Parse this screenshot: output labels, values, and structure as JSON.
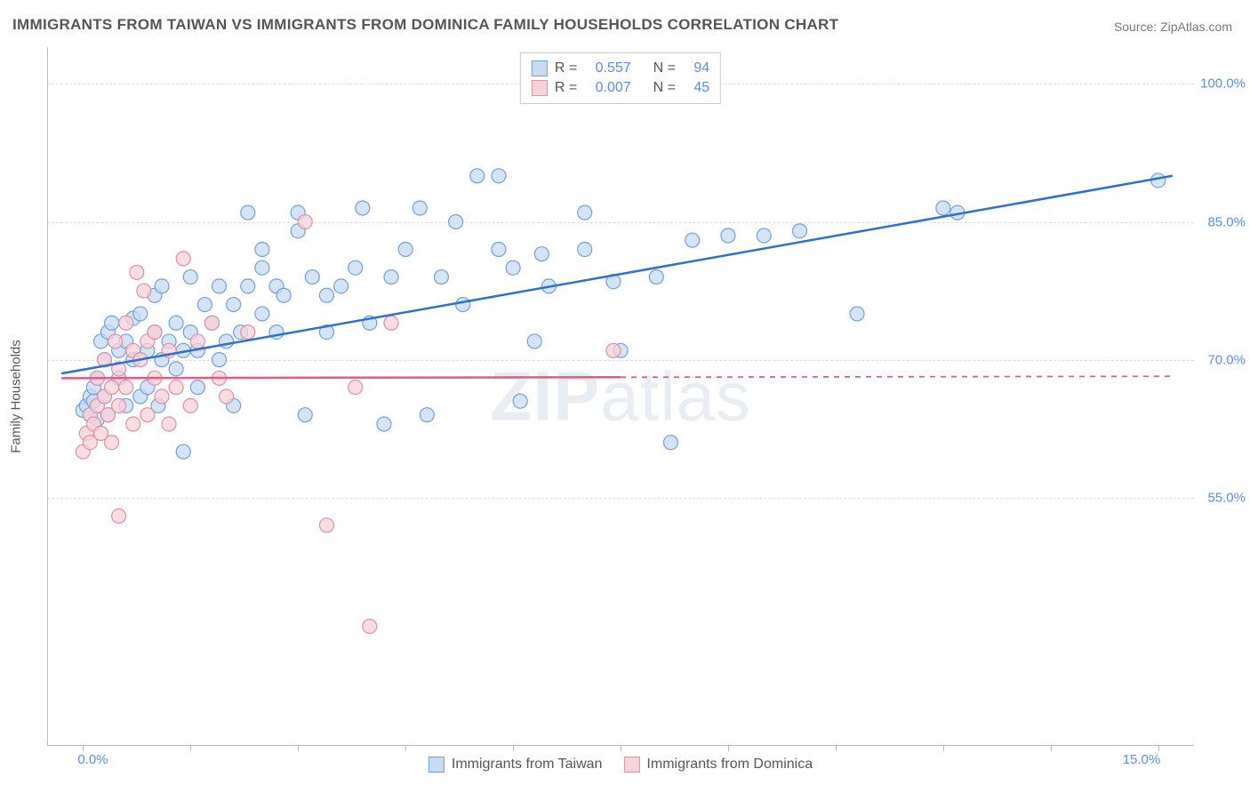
{
  "title": "IMMIGRANTS FROM TAIWAN VS IMMIGRANTS FROM DOMINICA FAMILY HOUSEHOLDS CORRELATION CHART",
  "source_label": "Source:",
  "source_name": "ZipAtlas.com",
  "ylabel": "Family Households",
  "watermark": "ZIPatlas",
  "watermark_bold": "ZIP",
  "watermark_light": "atlas",
  "chart": {
    "type": "scatter",
    "xlim": [
      -0.5,
      15.5
    ],
    "ylim": [
      28,
      104
    ],
    "x_ticks_labels": [
      {
        "v": 0.0,
        "label": "0.0%"
      },
      {
        "v": 15.0,
        "label": "15.0%"
      }
    ],
    "x_ticks_minor": [
      1.5,
      3.0,
      4.5,
      6.0,
      7.5,
      9.0,
      10.5,
      12.0,
      13.5
    ],
    "y_ticks": [
      {
        "v": 55.0,
        "label": "55.0%"
      },
      {
        "v": 70.0,
        "label": "70.0%"
      },
      {
        "v": 85.0,
        "label": "85.0%"
      },
      {
        "v": 100.0,
        "label": "100.0%"
      }
    ],
    "grid_color": "#dddddd",
    "background_color": "#ffffff",
    "marker_radius": 8,
    "marker_stroke_width": 1.2,
    "line_width": 2.5,
    "series": [
      {
        "name": "Immigrants from Taiwan",
        "fill": "#c7dbf2",
        "stroke": "#6fa0dd",
        "line_color": "#2e6fd1",
        "R": "0.557",
        "N": "94",
        "trend": {
          "x1": -0.3,
          "y1": 68.5,
          "x2": 15.2,
          "y2": 90.0,
          "solid_until": 15.2
        },
        "points": [
          [
            0.0,
            64.5
          ],
          [
            0.05,
            65.0
          ],
          [
            0.1,
            66.0
          ],
          [
            0.1,
            64.0
          ],
          [
            0.15,
            65.5
          ],
          [
            0.15,
            67.0
          ],
          [
            0.2,
            63.5
          ],
          [
            0.2,
            68.0
          ],
          [
            0.25,
            72.0
          ],
          [
            0.3,
            70.0
          ],
          [
            0.3,
            66.0
          ],
          [
            0.35,
            73.0
          ],
          [
            0.35,
            64.0
          ],
          [
            0.4,
            74.0
          ],
          [
            0.5,
            71.0
          ],
          [
            0.5,
            68.0
          ],
          [
            0.6,
            65.0
          ],
          [
            0.6,
            72.0
          ],
          [
            0.7,
            74.5
          ],
          [
            0.7,
            70.0
          ],
          [
            0.8,
            66.0
          ],
          [
            0.8,
            75.0
          ],
          [
            0.9,
            71.0
          ],
          [
            0.9,
            67.0
          ],
          [
            1.0,
            77.0
          ],
          [
            1.0,
            73.0
          ],
          [
            1.05,
            65.0
          ],
          [
            1.1,
            70.0
          ],
          [
            1.1,
            78.0
          ],
          [
            1.2,
            72.0
          ],
          [
            1.3,
            74.0
          ],
          [
            1.3,
            69.0
          ],
          [
            1.4,
            71.0
          ],
          [
            1.4,
            60.0
          ],
          [
            1.5,
            79.0
          ],
          [
            1.5,
            73.0
          ],
          [
            1.6,
            71.0
          ],
          [
            1.6,
            67.0
          ],
          [
            1.7,
            76.0
          ],
          [
            1.8,
            74.0
          ],
          [
            1.9,
            78.0
          ],
          [
            1.9,
            70.0
          ],
          [
            2.0,
            72.0
          ],
          [
            2.1,
            76.0
          ],
          [
            2.1,
            65.0
          ],
          [
            2.2,
            73.0
          ],
          [
            2.3,
            86.0
          ],
          [
            2.3,
            78.0
          ],
          [
            2.5,
            75.0
          ],
          [
            2.5,
            80.0
          ],
          [
            2.5,
            82.0
          ],
          [
            2.7,
            78.0
          ],
          [
            2.7,
            73.0
          ],
          [
            2.8,
            77.0
          ],
          [
            3.0,
            86.0
          ],
          [
            3.0,
            84.0
          ],
          [
            3.1,
            64.0
          ],
          [
            3.2,
            79.0
          ],
          [
            3.4,
            77.0
          ],
          [
            3.4,
            73.0
          ],
          [
            3.6,
            78.0
          ],
          [
            3.8,
            80.0
          ],
          [
            3.9,
            86.5
          ],
          [
            4.0,
            74.0
          ],
          [
            4.2,
            63.0
          ],
          [
            4.3,
            79.0
          ],
          [
            4.5,
            82.0
          ],
          [
            4.7,
            86.5
          ],
          [
            4.8,
            64.0
          ],
          [
            5.0,
            79.0
          ],
          [
            5.2,
            85.0
          ],
          [
            5.3,
            76.0
          ],
          [
            5.5,
            90.0
          ],
          [
            5.8,
            90.0
          ],
          [
            5.8,
            82.0
          ],
          [
            6.0,
            80.0
          ],
          [
            6.1,
            65.5
          ],
          [
            6.3,
            72.0
          ],
          [
            6.4,
            81.5
          ],
          [
            6.5,
            78.0
          ],
          [
            7.0,
            82.0
          ],
          [
            7.0,
            86.0
          ],
          [
            7.4,
            78.5
          ],
          [
            7.5,
            71.0
          ],
          [
            8.0,
            79.0
          ],
          [
            8.2,
            61.0
          ],
          [
            8.5,
            83.0
          ],
          [
            9.0,
            83.5
          ],
          [
            9.5,
            83.5
          ],
          [
            10.0,
            84.0
          ],
          [
            10.8,
            75.0
          ],
          [
            12.0,
            86.5
          ],
          [
            12.2,
            86.0
          ],
          [
            15.0,
            89.5
          ]
        ]
      },
      {
        "name": "Immigrants from Dominica",
        "fill": "#f6d2da",
        "stroke": "#e08fa4",
        "line_color": "#e15b80",
        "R": "0.007",
        "N": "45",
        "trend": {
          "x1": -0.3,
          "y1": 68.0,
          "x2": 15.2,
          "y2": 68.2,
          "solid_until": 7.5
        },
        "points": [
          [
            0.0,
            60.0
          ],
          [
            0.05,
            62.0
          ],
          [
            0.1,
            61.0
          ],
          [
            0.1,
            64.0
          ],
          [
            0.15,
            63.0
          ],
          [
            0.2,
            65.0
          ],
          [
            0.2,
            68.0
          ],
          [
            0.25,
            62.0
          ],
          [
            0.3,
            66.0
          ],
          [
            0.3,
            70.0
          ],
          [
            0.35,
            64.0
          ],
          [
            0.4,
            61.0
          ],
          [
            0.4,
            67.0
          ],
          [
            0.45,
            72.0
          ],
          [
            0.5,
            65.0
          ],
          [
            0.5,
            69.0
          ],
          [
            0.5,
            53.0
          ],
          [
            0.6,
            74.0
          ],
          [
            0.6,
            67.0
          ],
          [
            0.7,
            71.0
          ],
          [
            0.7,
            63.0
          ],
          [
            0.75,
            79.5
          ],
          [
            0.8,
            70.0
          ],
          [
            0.85,
            77.5
          ],
          [
            0.9,
            64.0
          ],
          [
            0.9,
            72.0
          ],
          [
            1.0,
            68.0
          ],
          [
            1.0,
            73.0
          ],
          [
            1.1,
            66.0
          ],
          [
            1.2,
            63.0
          ],
          [
            1.2,
            71.0
          ],
          [
            1.3,
            67.0
          ],
          [
            1.4,
            81.0
          ],
          [
            1.5,
            65.0
          ],
          [
            1.6,
            72.0
          ],
          [
            1.8,
            74.0
          ],
          [
            1.9,
            68.0
          ],
          [
            2.0,
            66.0
          ],
          [
            2.3,
            73.0
          ],
          [
            3.1,
            85.0
          ],
          [
            3.4,
            52.0
          ],
          [
            3.8,
            67.0
          ],
          [
            4.0,
            41.0
          ],
          [
            4.3,
            74.0
          ],
          [
            7.4,
            71.0
          ]
        ]
      }
    ],
    "legend_bottom": [
      {
        "label": "Immigrants from Taiwan",
        "fill": "#c7dbf2",
        "stroke": "#6fa0dd"
      },
      {
        "label": "Immigrants from Dominica",
        "fill": "#f6d2da",
        "stroke": "#e08fa4"
      }
    ]
  }
}
